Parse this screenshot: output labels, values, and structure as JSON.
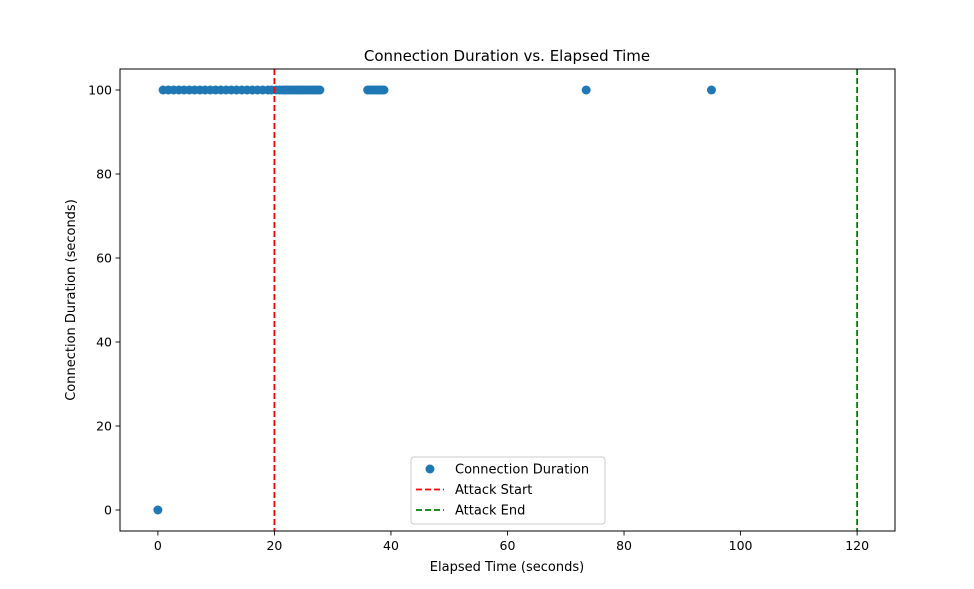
{
  "chart_data": {
    "type": "scatter",
    "title": "Connection Duration vs. Elapsed Time",
    "xlabel": "Elapsed Time (seconds)",
    "ylabel": "Connection Duration (seconds)",
    "xlim": [
      -6.5,
      126.5
    ],
    "ylim": [
      -5,
      105
    ],
    "xticks": [
      0,
      20,
      40,
      60,
      80,
      100,
      120
    ],
    "yticks": [
      0,
      20,
      40,
      60,
      80,
      100
    ],
    "grid": false,
    "legend_position": "lower center",
    "series": [
      {
        "name": "Connection Duration",
        "kind": "scatter",
        "color": "#1f77b4",
        "points": [
          [
            0,
            0
          ],
          [
            0.9,
            100
          ],
          [
            1.8,
            100
          ],
          [
            2.7,
            100
          ],
          [
            3.6,
            100
          ],
          [
            4.5,
            100
          ],
          [
            5.4,
            100
          ],
          [
            6.3,
            100
          ],
          [
            7.2,
            100
          ],
          [
            8.1,
            100
          ],
          [
            9.0,
            100
          ],
          [
            9.9,
            100
          ],
          [
            10.8,
            100
          ],
          [
            11.7,
            100
          ],
          [
            12.6,
            100
          ],
          [
            13.5,
            100
          ],
          [
            14.4,
            100
          ],
          [
            15.3,
            100
          ],
          [
            16.2,
            100
          ],
          [
            17.1,
            100
          ],
          [
            18.0,
            100
          ],
          [
            18.9,
            100
          ],
          [
            19.5,
            100
          ],
          [
            20.3,
            100
          ],
          [
            20.9,
            100
          ],
          [
            21.4,
            100
          ],
          [
            21.8,
            100
          ],
          [
            22.2,
            100
          ],
          [
            22.6,
            100
          ],
          [
            23.0,
            100
          ],
          [
            23.4,
            100
          ],
          [
            23.8,
            100
          ],
          [
            24.2,
            100
          ],
          [
            24.6,
            100
          ],
          [
            25.0,
            100
          ],
          [
            25.4,
            100
          ],
          [
            25.8,
            100
          ],
          [
            26.2,
            100
          ],
          [
            26.6,
            100
          ],
          [
            27.0,
            100
          ],
          [
            27.4,
            100
          ],
          [
            27.8,
            100
          ],
          [
            36.0,
            100
          ],
          [
            36.4,
            100
          ],
          [
            36.8,
            100
          ],
          [
            37.2,
            100
          ],
          [
            37.6,
            100
          ],
          [
            38.0,
            100
          ],
          [
            38.4,
            100
          ],
          [
            38.8,
            100
          ],
          [
            73.5,
            100
          ],
          [
            95.0,
            100
          ]
        ]
      },
      {
        "name": "Attack Start",
        "kind": "vline",
        "x": 20,
        "color": "#ff0000",
        "linestyle": "dashed"
      },
      {
        "name": "Attack End",
        "kind": "vline",
        "x": 120,
        "color": "#008000",
        "linestyle": "dashed"
      }
    ]
  }
}
